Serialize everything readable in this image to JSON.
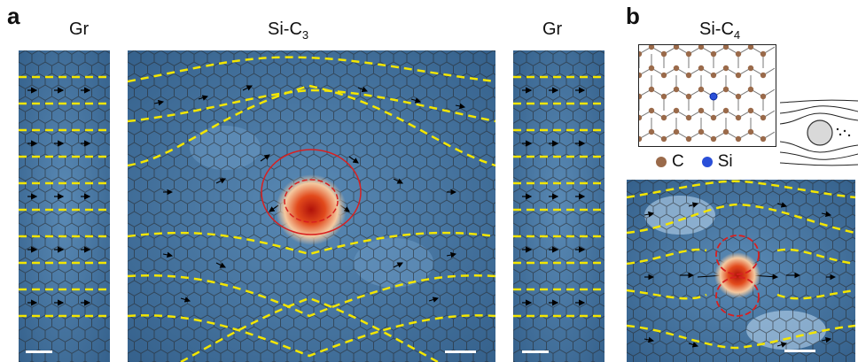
{
  "panels": {
    "a": {
      "letter": "a",
      "left_title": "Gr",
      "center_title_main": "Si-C",
      "center_title_sub": "3",
      "right_title": "Gr"
    },
    "b": {
      "letter": "b",
      "title_main": "Si-C",
      "title_sub": "4",
      "legend": [
        {
          "label": "C",
          "color": "#9a6a4a"
        },
        {
          "label": "Si",
          "color": "#2a4fd8"
        }
      ]
    }
  },
  "colors": {
    "background_field": "#3f6e99",
    "lattice": "#2b2b2b",
    "streamline": "#f3e600",
    "contour": "#d82020",
    "hotspot": "#c81e10",
    "arrow": "#000000",
    "scalebar": "#ffffff"
  }
}
